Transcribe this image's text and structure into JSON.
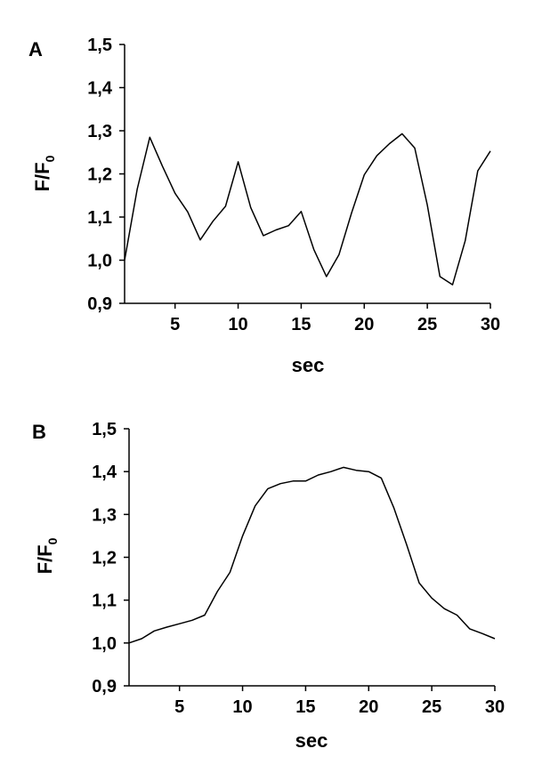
{
  "chart_data": [
    {
      "type": "line",
      "panel_label": "A",
      "xlabel": "sec",
      "ylabel": "F/F",
      "ylabel_subscript": "0",
      "xlim": [
        1,
        30
      ],
      "ylim": [
        0.9,
        1.5
      ],
      "xticks": [
        5,
        10,
        15,
        20,
        25,
        30
      ],
      "xtick_labels": [
        "5",
        "10",
        "15",
        "20",
        "25",
        "30"
      ],
      "yticks": [
        0.9,
        1.0,
        1.1,
        1.2,
        1.3,
        1.4,
        1.5
      ],
      "ytick_labels": [
        "0,9",
        "1,0",
        "1,1",
        "1,2",
        "1,3",
        "1,4",
        "1,5"
      ],
      "grid": false,
      "series": [
        {
          "x": [
            1,
            2,
            3,
            4,
            5,
            6,
            7,
            8,
            9,
            10,
            11,
            12,
            13,
            14,
            15,
            16,
            17,
            18,
            19,
            20,
            21,
            22,
            23,
            24,
            25,
            26,
            27,
            28,
            29,
            30
          ],
          "values": [
            1.0,
            1.165,
            1.285,
            1.218,
            1.155,
            1.112,
            1.047,
            1.09,
            1.125,
            1.228,
            1.122,
            1.057,
            1.07,
            1.08,
            1.113,
            1.025,
            0.962,
            1.013,
            1.11,
            1.198,
            1.242,
            1.27,
            1.293,
            1.26,
            1.128,
            0.962,
            0.943,
            1.045,
            1.207,
            1.253
          ]
        }
      ]
    },
    {
      "type": "line",
      "panel_label": "B",
      "xlabel": "sec",
      "ylabel": "F/F",
      "ylabel_subscript": "0",
      "xlim": [
        1,
        30
      ],
      "ylim": [
        0.9,
        1.5
      ],
      "xticks": [
        5,
        10,
        15,
        20,
        25,
        30
      ],
      "xtick_labels": [
        "5",
        "10",
        "15",
        "20",
        "25",
        "30"
      ],
      "yticks": [
        0.9,
        1.0,
        1.1,
        1.2,
        1.3,
        1.4,
        1.5
      ],
      "ytick_labels": [
        "0,9",
        "1,0",
        "1,1",
        "1,2",
        "1,3",
        "1,4",
        "1,5"
      ],
      "grid": false,
      "series": [
        {
          "x": [
            1,
            2,
            3,
            4,
            5,
            6,
            7,
            8,
            9,
            10,
            11,
            12,
            13,
            14,
            15,
            16,
            17,
            18,
            19,
            20,
            21,
            22,
            23,
            24,
            25,
            26,
            27,
            28,
            29,
            30
          ],
          "values": [
            1.0,
            1.01,
            1.028,
            1.037,
            1.045,
            1.053,
            1.065,
            1.12,
            1.165,
            1.25,
            1.32,
            1.36,
            1.372,
            1.378,
            1.378,
            1.392,
            1.4,
            1.41,
            1.403,
            1.4,
            1.385,
            1.315,
            1.23,
            1.14,
            1.105,
            1.08,
            1.065,
            1.033,
            1.022,
            1.01
          ]
        }
      ]
    }
  ]
}
